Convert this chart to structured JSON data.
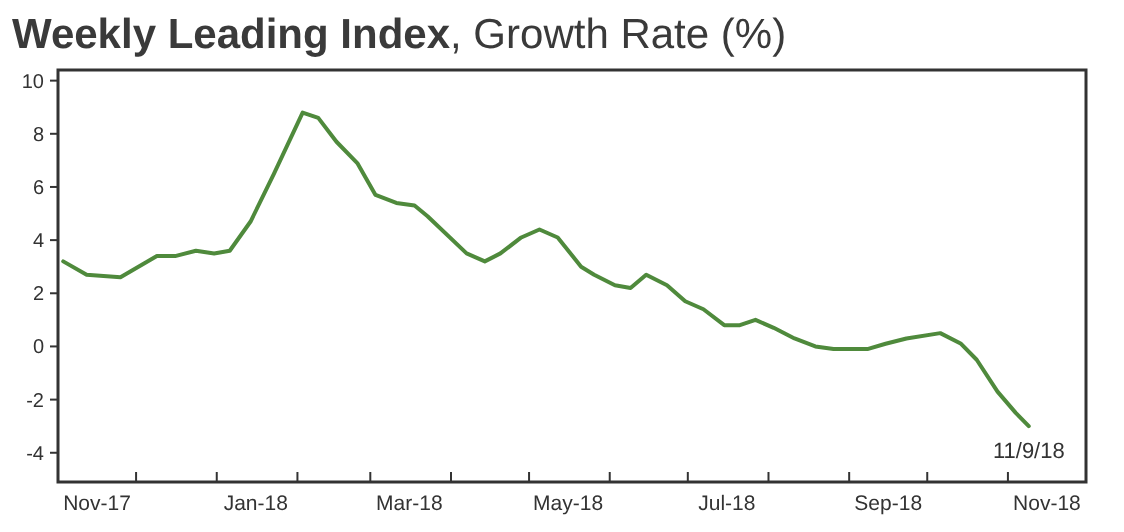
{
  "chart_data": {
    "type": "line",
    "title": "Weekly Leading Index, Growth Rate (%)",
    "x": [
      "2017-11-03",
      "2017-11-12",
      "2017-11-25",
      "2017-12-09",
      "2017-12-16",
      "2017-12-24",
      "2017-12-31",
      "2018-01-06",
      "2018-01-14",
      "2018-01-23",
      "2018-02-03",
      "2018-02-09",
      "2018-02-16",
      "2018-02-24",
      "2018-03-03",
      "2018-03-11",
      "2018-03-18",
      "2018-03-23",
      "2018-04-07",
      "2018-04-14",
      "2018-04-20",
      "2018-04-28",
      "2018-05-05",
      "2018-05-12",
      "2018-05-21",
      "2018-05-26",
      "2018-06-03",
      "2018-06-09",
      "2018-06-15",
      "2018-06-23",
      "2018-06-30",
      "2018-07-07",
      "2018-07-15",
      "2018-07-21",
      "2018-07-27",
      "2018-08-03",
      "2018-08-11",
      "2018-08-19",
      "2018-08-26",
      "2018-09-08",
      "2018-09-15",
      "2018-09-23",
      "2018-10-06",
      "2018-10-14",
      "2018-10-20",
      "2018-10-28",
      "2018-11-04",
      "2018-11-09"
    ],
    "series": [
      {
        "color": "#4f8a3c",
        "values": [
          3.2,
          2.7,
          2.6,
          3.4,
          3.4,
          3.6,
          3.5,
          3.6,
          4.7,
          6.5,
          8.8,
          8.6,
          7.7,
          6.9,
          5.7,
          5.4,
          5.3,
          4.9,
          3.5,
          3.2,
          3.5,
          4.1,
          4.4,
          4.1,
          3.0,
          2.7,
          2.3,
          2.2,
          2.7,
          2.3,
          1.7,
          1.4,
          0.8,
          0.8,
          1.0,
          0.7,
          0.3,
          0.0,
          -0.1,
          -0.1,
          0.1,
          0.3,
          0.5,
          0.1,
          -0.5,
          -1.7,
          -2.5,
          -3.0
        ]
      }
    ],
    "ylim": [
      -5.1,
      10.4
    ],
    "yticks": [
      -4,
      -2,
      0,
      2,
      4,
      6,
      8,
      10
    ],
    "xlim": [
      "2017-11-01",
      "2018-12-01"
    ],
    "xticks": [
      {
        "value": "2017-11-16",
        "label": "Nov-17"
      },
      {
        "value": "2018-01-16",
        "label": "Jan-18"
      },
      {
        "value": "2018-03-16",
        "label": "Mar-18"
      },
      {
        "value": "2018-05-16",
        "label": "May-18"
      },
      {
        "value": "2018-07-16",
        "label": "Jul-18"
      },
      {
        "value": "2018-09-16",
        "label": "Sep-18"
      },
      {
        "value": "2018-11-16",
        "label": "Nov-18"
      },
      {
        "value": "2017-12-01",
        "label": null
      },
      {
        "value": "2018-01-01",
        "label": null
      },
      {
        "value": "2018-02-01",
        "label": null
      },
      {
        "value": "2018-03-01",
        "label": null
      },
      {
        "value": "2018-04-01",
        "label": null
      },
      {
        "value": "2018-05-01",
        "label": null
      },
      {
        "value": "2018-06-01",
        "label": null
      },
      {
        "value": "2018-07-01",
        "label": null
      },
      {
        "value": "2018-08-01",
        "label": null
      },
      {
        "value": "2018-09-01",
        "label": null
      },
      {
        "value": "2018-10-01",
        "label": null
      },
      {
        "value": "2018-11-01",
        "label": null
      }
    ],
    "annotations": [
      {
        "text": "11/9/18",
        "x": "2018-11-09",
        "y": -3.0
      }
    ],
    "marker": "none",
    "line_style": "solid"
  }
}
